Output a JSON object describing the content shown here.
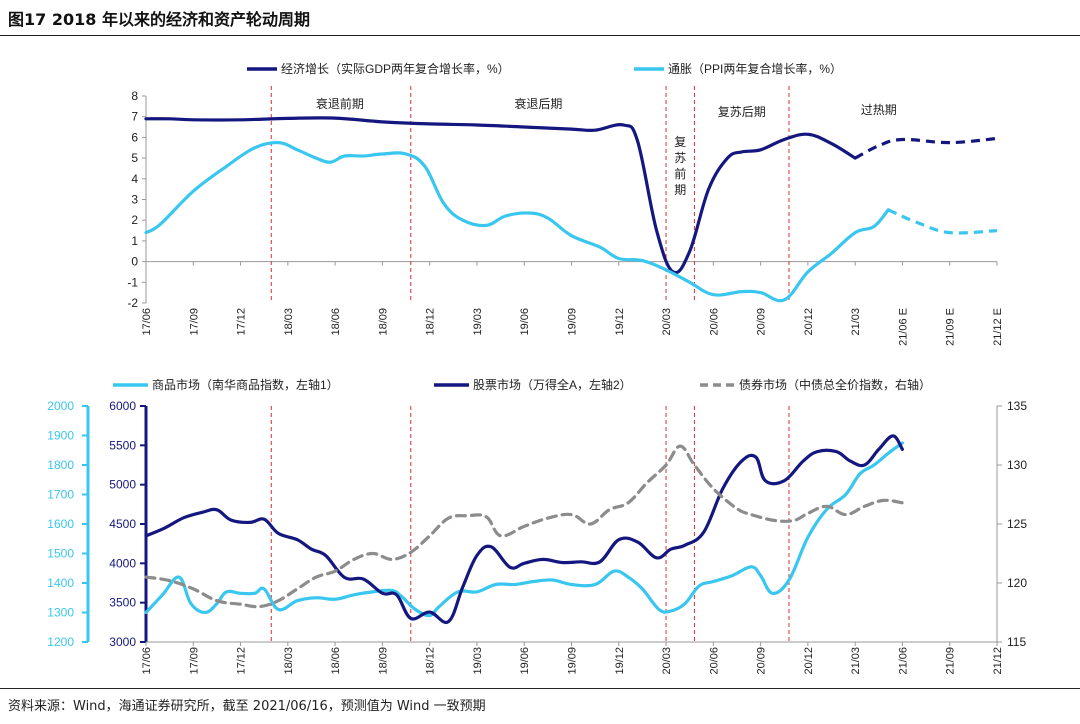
{
  "figure": {
    "title": "图17 2018 年以来的经济和资产轮动周期",
    "source": "资料来源：Wind，海通证券研究所，截至 2021/06/16，预测值为 Wind 一致预期"
  },
  "colors": {
    "dark_navy": "#14177f",
    "light_blue": "#39c6ef",
    "gray": "#8c8c8c",
    "red_dash": "#e03030"
  },
  "chart_data": [
    {
      "type": "line",
      "legend_position": "top",
      "ylim": [
        -2,
        8
      ],
      "yticks": [
        "8",
        "7",
        "6",
        "5",
        "4",
        "3",
        "2",
        "1",
        "0",
        "-1",
        "-2"
      ],
      "xticks": [
        "17/06",
        "17/09",
        "17/12",
        "18/03",
        "18/06",
        "18/09",
        "18/12",
        "19/03",
        "19/06",
        "19/09",
        "19/12",
        "20/03",
        "20/06",
        "20/09",
        "20/12",
        "21/03",
        "21/06 E",
        "21/09 E",
        "21/12 E"
      ],
      "phases": [
        "衰退前期",
        "衰退后期",
        "复苏前期",
        "复苏后期",
        "过热期"
      ],
      "series": [
        {
          "name": "经济增长（实际GDP两年复合增长率，%）",
          "color": "#14177f",
          "points": [
            [
              0,
              6.9
            ],
            [
              0.5,
              6.9
            ],
            [
              1,
              6.85
            ],
            [
              2,
              6.85
            ],
            [
              3,
              6.92
            ],
            [
              4,
              6.93
            ],
            [
              5,
              6.75
            ],
            [
              6,
              6.65
            ],
            [
              7,
              6.6
            ],
            [
              8,
              6.5
            ],
            [
              9,
              6.4
            ],
            [
              9.5,
              6.35
            ],
            [
              10.1,
              6.6
            ],
            [
              10.4,
              5.8
            ],
            [
              10.8,
              1.5
            ],
            [
              11.15,
              -0.5
            ],
            [
              11.5,
              0.5
            ],
            [
              11.9,
              3.5
            ],
            [
              12.3,
              5.0
            ],
            [
              12.6,
              5.3
            ],
            [
              13.0,
              5.4
            ],
            [
              13.5,
              5.9
            ],
            [
              14.0,
              6.15
            ],
            [
              14.5,
              5.7
            ],
            [
              15.0,
              5.0
            ]
          ],
          "forecast_points": [
            [
              15.0,
              5.0
            ],
            [
              15.5,
              5.6
            ],
            [
              16.0,
              5.9
            ],
            [
              17.0,
              5.75
            ],
            [
              18.0,
              5.95
            ]
          ]
        },
        {
          "name": "通胀（PPI两年复合增长率，%）",
          "color": "#39c6ef",
          "points": [
            [
              0,
              1.4
            ],
            [
              0.3,
              1.8
            ],
            [
              1,
              3.4
            ],
            [
              1.7,
              4.6
            ],
            [
              2.3,
              5.5
            ],
            [
              2.8,
              5.75
            ],
            [
              3.2,
              5.4
            ],
            [
              3.6,
              5.0
            ],
            [
              3.9,
              4.8
            ],
            [
              4.2,
              5.1
            ],
            [
              4.6,
              5.1
            ],
            [
              5.0,
              5.2
            ],
            [
              5.5,
              5.2
            ],
            [
              5.9,
              4.6
            ],
            [
              6.3,
              2.8
            ],
            [
              6.7,
              2.0
            ],
            [
              7.2,
              1.75
            ],
            [
              7.6,
              2.2
            ],
            [
              8.1,
              2.35
            ],
            [
              8.5,
              2.1
            ],
            [
              9.0,
              1.25
            ],
            [
              9.6,
              0.7
            ],
            [
              10.0,
              0.15
            ],
            [
              10.5,
              0.05
            ],
            [
              11.0,
              -0.4
            ],
            [
              11.5,
              -1.0
            ],
            [
              12.0,
              -1.6
            ],
            [
              12.6,
              -1.45
            ],
            [
              13.0,
              -1.5
            ],
            [
              13.5,
              -1.85
            ],
            [
              14.0,
              -0.5
            ],
            [
              14.5,
              0.4
            ],
            [
              15.0,
              1.4
            ],
            [
              15.4,
              1.7
            ],
            [
              15.7,
              2.5
            ]
          ],
          "forecast_points": [
            [
              15.7,
              2.5
            ],
            [
              16.3,
              1.9
            ],
            [
              17.0,
              1.4
            ],
            [
              18.0,
              1.5
            ]
          ]
        }
      ]
    },
    {
      "type": "line",
      "legend_position": "top",
      "y_left1": {
        "ylim": [
          1200,
          2000
        ],
        "ticks": [
          "2000",
          "1900",
          "1800",
          "1700",
          "1600",
          "1500",
          "1400",
          "1300",
          "1200"
        ]
      },
      "y_left2": {
        "ylim": [
          3000,
          6000
        ],
        "ticks": [
          "6000",
          "5500",
          "5000",
          "4500",
          "4000",
          "3500",
          "3000"
        ]
      },
      "y_right": {
        "ylim": [
          115,
          135
        ],
        "ticks": [
          "135",
          "130",
          "125",
          "120",
          "115"
        ]
      },
      "xticks": [
        "17/06",
        "17/09",
        "17/12",
        "18/03",
        "18/06",
        "18/09",
        "18/12",
        "19/03",
        "19/06",
        "19/09",
        "19/12",
        "20/03",
        "20/06",
        "20/09",
        "20/12",
        "21/03",
        "21/06",
        "21/09",
        "21/12"
      ],
      "series": [
        {
          "name": "商品市场（南华商品指数，左轴1）",
          "color": "#39c6ef",
          "axis": "left1",
          "points": [
            [
              0,
              1300
            ],
            [
              0.35,
              1360
            ],
            [
              0.7,
              1420
            ],
            [
              0.95,
              1330
            ],
            [
              1.25,
              1300
            ],
            [
              1.5,
              1330
            ],
            [
              1.7,
              1370
            ],
            [
              2.0,
              1365
            ],
            [
              2.3,
              1365
            ],
            [
              2.5,
              1380
            ],
            [
              2.8,
              1310
            ],
            [
              3.2,
              1340
            ],
            [
              3.6,
              1350
            ],
            [
              4.0,
              1345
            ],
            [
              4.4,
              1360
            ],
            [
              4.8,
              1370
            ],
            [
              5.2,
              1375
            ],
            [
              5.4,
              1355
            ],
            [
              5.7,
              1310
            ],
            [
              6.0,
              1290
            ],
            [
              6.2,
              1320
            ],
            [
              6.6,
              1370
            ],
            [
              7.0,
              1370
            ],
            [
              7.4,
              1395
            ],
            [
              7.8,
              1395
            ],
            [
              8.2,
              1405
            ],
            [
              8.6,
              1410
            ],
            [
              9.0,
              1395
            ],
            [
              9.5,
              1395
            ],
            [
              9.9,
              1440
            ],
            [
              10.2,
              1420
            ],
            [
              10.5,
              1380
            ],
            [
              10.85,
              1310
            ],
            [
              11.1,
              1305
            ],
            [
              11.4,
              1330
            ],
            [
              11.7,
              1390
            ],
            [
              12.0,
              1405
            ],
            [
              12.4,
              1425
            ],
            [
              12.8,
              1455
            ],
            [
              13.0,
              1425
            ],
            [
              13.25,
              1365
            ],
            [
              13.6,
              1410
            ],
            [
              14.0,
              1555
            ],
            [
              14.4,
              1650
            ],
            [
              14.8,
              1700
            ],
            [
              15.1,
              1770
            ],
            [
              15.4,
              1800
            ],
            [
              15.7,
              1840
            ],
            [
              16.0,
              1875
            ]
          ]
        },
        {
          "name": "股票市场（万得全A，左轴2）",
          "color": "#14177f",
          "axis": "left2",
          "points": [
            [
              0,
              4350
            ],
            [
              0.4,
              4450
            ],
            [
              0.8,
              4580
            ],
            [
              1.2,
              4650
            ],
            [
              1.5,
              4680
            ],
            [
              1.8,
              4550
            ],
            [
              2.2,
              4520
            ],
            [
              2.5,
              4560
            ],
            [
              2.8,
              4380
            ],
            [
              3.2,
              4300
            ],
            [
              3.5,
              4180
            ],
            [
              3.8,
              4100
            ],
            [
              4.2,
              3820
            ],
            [
              4.6,
              3800
            ],
            [
              5.0,
              3620
            ],
            [
              5.3,
              3600
            ],
            [
              5.6,
              3300
            ],
            [
              6.0,
              3380
            ],
            [
              6.4,
              3260
            ],
            [
              6.7,
              3700
            ],
            [
              7.0,
              4100
            ],
            [
              7.3,
              4210
            ],
            [
              7.7,
              3950
            ],
            [
              8.0,
              4000
            ],
            [
              8.4,
              4050
            ],
            [
              8.8,
              4010
            ],
            [
              9.2,
              4020
            ],
            [
              9.6,
              4020
            ],
            [
              10.0,
              4300
            ],
            [
              10.4,
              4270
            ],
            [
              10.8,
              4070
            ],
            [
              11.1,
              4180
            ],
            [
              11.4,
              4230
            ],
            [
              11.8,
              4400
            ],
            [
              12.2,
              4950
            ],
            [
              12.6,
              5300
            ],
            [
              12.9,
              5350
            ],
            [
              13.1,
              5050
            ],
            [
              13.5,
              5050
            ],
            [
              13.9,
              5300
            ],
            [
              14.2,
              5420
            ],
            [
              14.6,
              5420
            ],
            [
              14.9,
              5300
            ],
            [
              15.2,
              5250
            ],
            [
              15.5,
              5450
            ],
            [
              15.8,
              5620
            ],
            [
              16.0,
              5450
            ]
          ]
        },
        {
          "name": "债券市场（中债总全价指数，右轴）",
          "color": "#8c8c8c",
          "axis": "right",
          "dashed": true,
          "points": [
            [
              0,
              120.5
            ],
            [
              0.5,
              120.2
            ],
            [
              1,
              119.5
            ],
            [
              1.5,
              118.5
            ],
            [
              2.0,
              118.2
            ],
            [
              2.4,
              118.0
            ],
            [
              2.8,
              118.5
            ],
            [
              3.2,
              119.5
            ],
            [
              3.6,
              120.5
            ],
            [
              4.0,
              121.0
            ],
            [
              4.4,
              122.0
            ],
            [
              4.8,
              122.5
            ],
            [
              5.2,
              122.0
            ],
            [
              5.6,
              122.6
            ],
            [
              6.0,
              124.0
            ],
            [
              6.4,
              125.5
            ],
            [
              6.8,
              125.7
            ],
            [
              7.2,
              125.6
            ],
            [
              7.5,
              124.0
            ],
            [
              8.0,
              124.8
            ],
            [
              8.5,
              125.5
            ],
            [
              9.0,
              125.8
            ],
            [
              9.4,
              125.0
            ],
            [
              9.8,
              126.2
            ],
            [
              10.2,
              126.8
            ],
            [
              10.6,
              128.5
            ],
            [
              11.0,
              130.0
            ],
            [
              11.3,
              131.6
            ],
            [
              11.6,
              130.0
            ],
            [
              12.0,
              128.0
            ],
            [
              12.5,
              126.3
            ],
            [
              12.8,
              125.8
            ],
            [
              13.3,
              125.3
            ],
            [
              13.7,
              125.3
            ],
            [
              14.0,
              125.9
            ],
            [
              14.4,
              126.5
            ],
            [
              14.8,
              125.8
            ],
            [
              15.2,
              126.5
            ],
            [
              15.6,
              127.0
            ],
            [
              16.0,
              126.8
            ]
          ]
        }
      ]
    }
  ]
}
